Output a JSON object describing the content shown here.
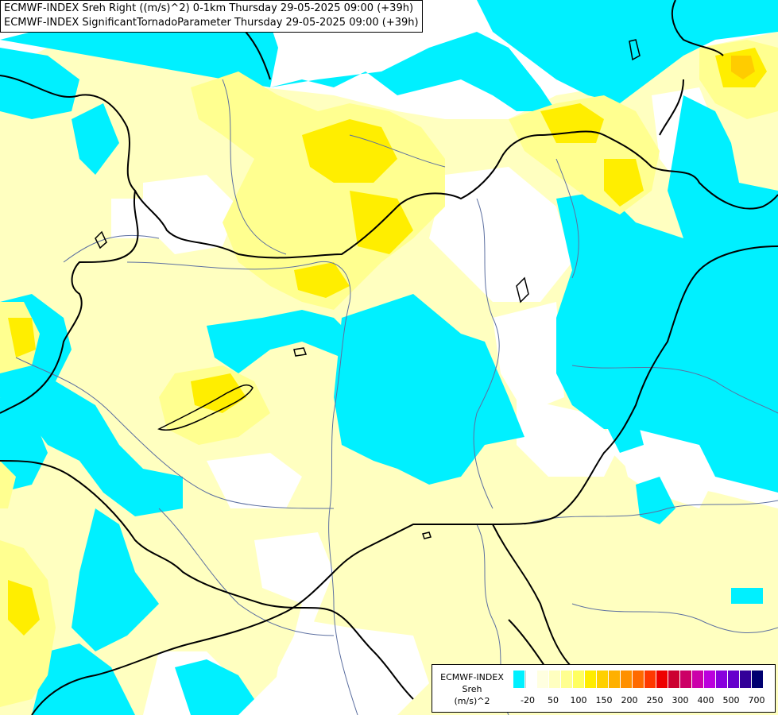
{
  "titles": {
    "line1": "ECMWF-INDEX Sreh Right ((m/s)^2) 0-1km Thursday 29-05-2025 09:00 (+39h)",
    "line2": "ECMWF-INDEX SignificantTornadoParameter Thursday 29-05-2025 09:00 (+39h)"
  },
  "legend": {
    "title": "ECMWF-INDEX",
    "variable": "Sreh",
    "unit": "(m/s)^2",
    "colors": [
      "#00f0ff",
      "#ffffff",
      "#ffffe0",
      "#ffffc0",
      "#ffff90",
      "#ffff60",
      "#ffec00",
      "#ffd000",
      "#ffb000",
      "#ff9000",
      "#ff6a00",
      "#ff3800",
      "#ee0000",
      "#cc0030",
      "#cc0066",
      "#cc00aa",
      "#bb00dd",
      "#8800dd",
      "#6600cc",
      "#330099",
      "#000070"
    ],
    "ticks": [
      "-20",
      "50",
      "100",
      "150",
      "200",
      "250",
      "300",
      "400",
      "500",
      "700"
    ]
  },
  "map_colors": {
    "background": "#ffffff",
    "cyan": "#00f0ff",
    "pale_yellow": "#ffffc0",
    "yellow": "#ffff90",
    "bright_yellow": "#ffee00",
    "orange": "#ffcc00",
    "rivers": "#5c6fa0",
    "borders": "#000000"
  }
}
